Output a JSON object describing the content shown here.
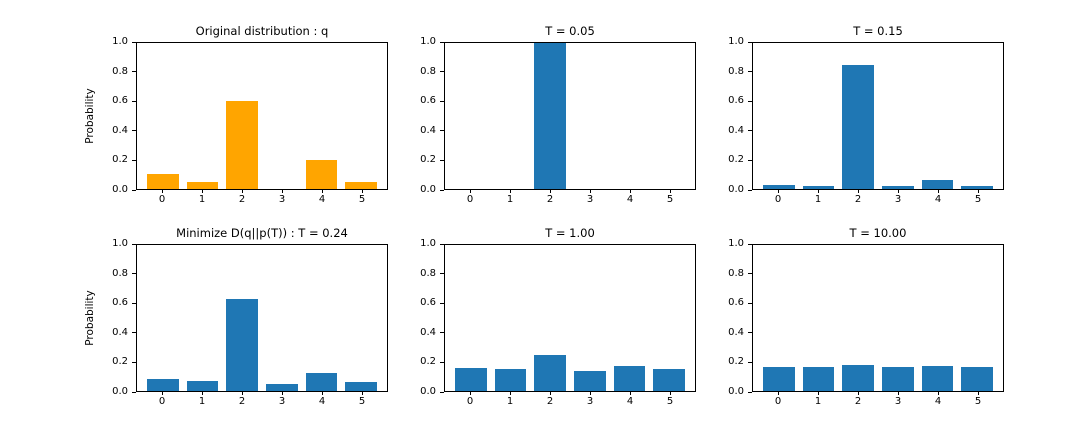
{
  "figure": {
    "background": "#ffffff",
    "spine_color": "#000000",
    "default_bar_color": "#1f77b4",
    "highlight_bar_color": "#ffa500"
  },
  "chart_data": [
    {
      "type": "bar",
      "title": "Original distribution : q",
      "ylabel": "Probability",
      "xlabel": "",
      "categories": [
        "0",
        "1",
        "2",
        "3",
        "4",
        "5"
      ],
      "values": [
        0.1,
        0.05,
        0.6,
        0.0,
        0.2,
        0.05
      ],
      "color": "#ffa500",
      "ylim": [
        0,
        1.0
      ],
      "yticks": [
        "0.0",
        "0.2",
        "0.4",
        "0.6",
        "0.8",
        "1.0"
      ],
      "grid": false,
      "legend": false
    },
    {
      "type": "bar",
      "title": "T = 0.05",
      "ylabel": "",
      "xlabel": "",
      "categories": [
        "0",
        "1",
        "2",
        "3",
        "4",
        "5"
      ],
      "values": [
        0.0,
        0.0,
        1.0,
        0.0,
        0.0,
        0.0
      ],
      "color": "#1f77b4",
      "ylim": [
        0,
        1.0
      ],
      "yticks": [
        "0.0",
        "0.2",
        "0.4",
        "0.6",
        "0.8",
        "1.0"
      ],
      "grid": false,
      "legend": false
    },
    {
      "type": "bar",
      "title": "T = 0.15",
      "ylabel": "",
      "xlabel": "",
      "categories": [
        "0",
        "1",
        "2",
        "3",
        "4",
        "5"
      ],
      "values": [
        0.03,
        0.02,
        0.85,
        0.02,
        0.06,
        0.02
      ],
      "color": "#1f77b4",
      "ylim": [
        0,
        1.0
      ],
      "yticks": [
        "0.0",
        "0.2",
        "0.4",
        "0.6",
        "0.8",
        "1.0"
      ],
      "grid": false,
      "legend": false
    },
    {
      "type": "bar",
      "title": "Minimize D(q||p(T)) : T = 0.24",
      "ylabel": "Probability",
      "xlabel": "",
      "categories": [
        "0",
        "1",
        "2",
        "3",
        "4",
        "5"
      ],
      "values": [
        0.08,
        0.07,
        0.63,
        0.05,
        0.12,
        0.06
      ],
      "color": "#1f77b4",
      "ylim": [
        0,
        1.0
      ],
      "yticks": [
        "0.0",
        "0.2",
        "0.4",
        "0.6",
        "0.8",
        "1.0"
      ],
      "grid": false,
      "legend": false
    },
    {
      "type": "bar",
      "title": "T = 1.00",
      "ylabel": "",
      "xlabel": "",
      "categories": [
        "0",
        "1",
        "2",
        "3",
        "4",
        "5"
      ],
      "values": [
        0.155,
        0.15,
        0.25,
        0.14,
        0.17,
        0.15
      ],
      "color": "#1f77b4",
      "ylim": [
        0,
        1.0
      ],
      "yticks": [
        "0.0",
        "0.2",
        "0.4",
        "0.6",
        "0.8",
        "1.0"
      ],
      "grid": false,
      "legend": false
    },
    {
      "type": "bar",
      "title": "T = 10.00",
      "ylabel": "",
      "xlabel": "",
      "categories": [
        "0",
        "1",
        "2",
        "3",
        "4",
        "5"
      ],
      "values": [
        0.165,
        0.165,
        0.175,
        0.165,
        0.17,
        0.165
      ],
      "color": "#1f77b4",
      "ylim": [
        0,
        1.0
      ],
      "yticks": [
        "0.0",
        "0.2",
        "0.4",
        "0.6",
        "0.8",
        "1.0"
      ],
      "grid": false,
      "legend": false
    }
  ]
}
